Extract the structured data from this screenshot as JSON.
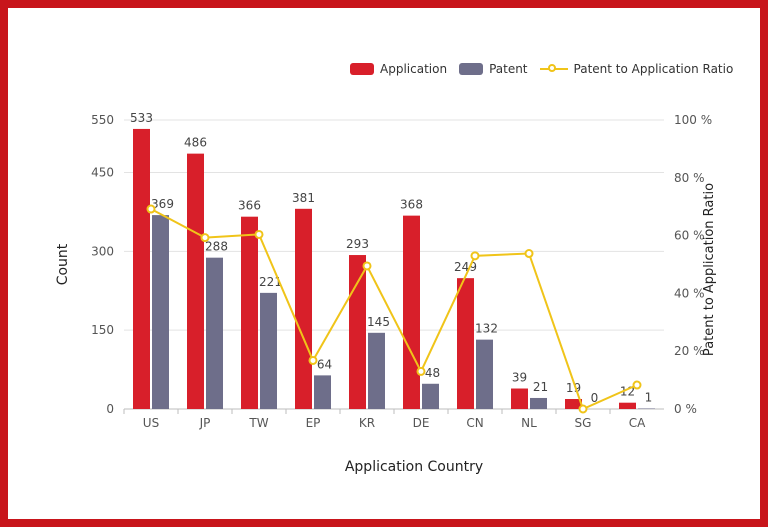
{
  "chart_data": {
    "type": "bar",
    "xlabel": "Application Country",
    "ylabel": "Count",
    "y2label": "Patent to Application Ratio",
    "categories": [
      "US",
      "JP",
      "TW",
      "EP",
      "KR",
      "DE",
      "CN",
      "NL",
      "SG",
      "CA"
    ],
    "ylim": [
      0,
      550
    ],
    "yticks": [
      "0",
      "150",
      "300",
      "450",
      "550"
    ],
    "y2lim": [
      0,
      100
    ],
    "y2ticks": [
      "0 %",
      "20 %",
      "40 %",
      "60 %",
      "80 %",
      "100 %"
    ],
    "series": [
      {
        "name": "Application",
        "kind": "bar",
        "color": "#d81f2a",
        "values": [
          533,
          486,
          366,
          381,
          293,
          368,
          249,
          39,
          19,
          12
        ]
      },
      {
        "name": "Patent",
        "kind": "bar",
        "color": "#6e6e8a",
        "values": [
          369,
          288,
          221,
          64,
          145,
          48,
          132,
          21,
          0,
          1
        ]
      },
      {
        "name": "Patent to Application Ratio",
        "kind": "line",
        "axis": "y2",
        "color": "#f0c419",
        "values": [
          69.2,
          59.3,
          60.4,
          16.8,
          49.5,
          13.0,
          53.0,
          53.8,
          0,
          8.3
        ]
      }
    ],
    "bar_labels": {
      "Application": [
        "533",
        "486",
        "366",
        "381",
        "293",
        "368",
        "249",
        "39",
        "19",
        "12"
      ],
      "Patent": [
        "369",
        "288",
        "221",
        "64",
        "145",
        "48",
        "132",
        "21",
        "0",
        "1"
      ]
    },
    "grid": true,
    "legend_position": "top-right"
  }
}
